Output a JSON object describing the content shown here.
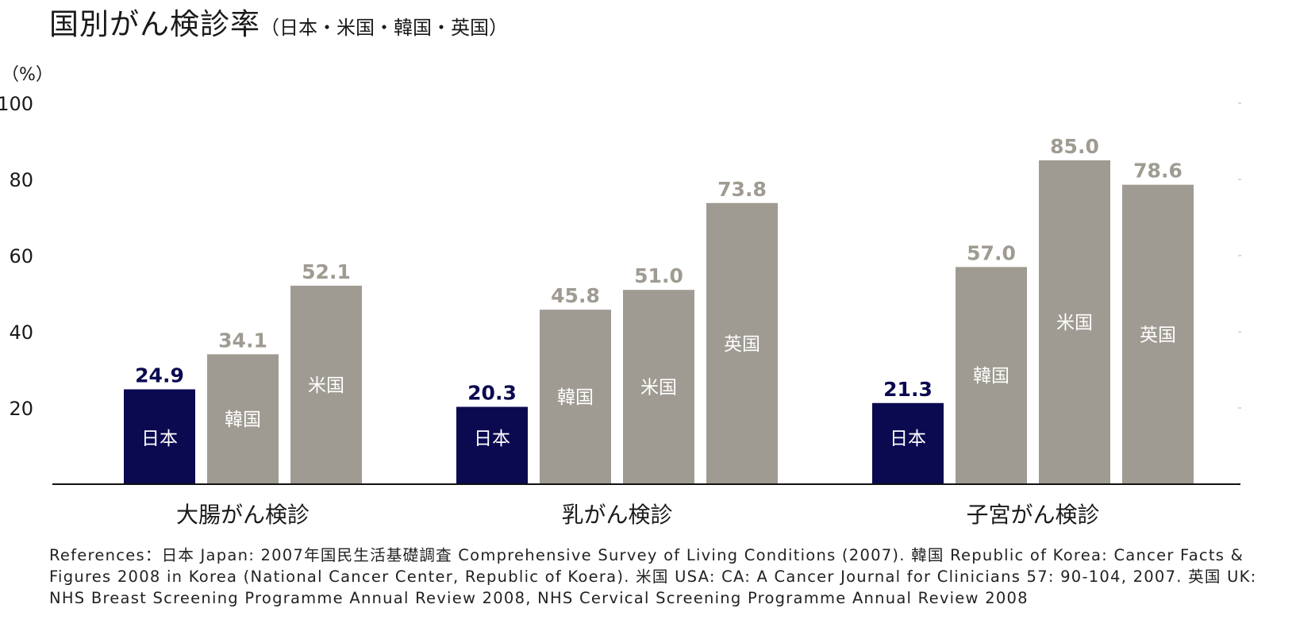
{
  "title": "国別がん検診率",
  "subtitle": "（日本・米国・韓国・英国）",
  "y_unit": "（%）",
  "colors": {
    "japan": "#0b0950",
    "others": "#9f9b92",
    "axis": "#111111",
    "grid": "#cccccc"
  },
  "chart_data": {
    "type": "bar",
    "ylabel": "（%）",
    "ylim": [
      0,
      100
    ],
    "yticks": [
      20,
      40,
      60,
      80,
      100
    ],
    "groups": [
      {
        "label": "大腸がん検診",
        "bars": [
          {
            "name": "日本",
            "value": 24.9,
            "value_label": "24.9"
          },
          {
            "name": "韓国",
            "value": 34.1,
            "value_label": "34.1"
          },
          {
            "name": "米国",
            "value": 52.1,
            "value_label": "52.1"
          }
        ]
      },
      {
        "label": "乳がん検診",
        "bars": [
          {
            "name": "日本",
            "value": 20.3,
            "value_label": "20.3"
          },
          {
            "name": "韓国",
            "value": 45.8,
            "value_label": "45.8"
          },
          {
            "name": "米国",
            "value": 51.0,
            "value_label": "51.0"
          },
          {
            "name": "英国",
            "value": 73.8,
            "value_label": "73.8"
          }
        ]
      },
      {
        "label": "子宮がん検診",
        "bars": [
          {
            "name": "日本",
            "value": 21.3,
            "value_label": "21.3"
          },
          {
            "name": "韓国",
            "value": 57.0,
            "value_label": "57.0"
          },
          {
            "name": "米国",
            "value": 85.0,
            "value_label": "85.0"
          },
          {
            "name": "英国",
            "value": 78.6,
            "value_label": "78.6"
          }
        ]
      }
    ]
  },
  "references": "References：日本 Japan: 2007年国民生活基礎調査 Comprehensive Survey of Living Conditions (2007). 韓国 Republic of Korea: Cancer Facts &\nFigures 2008 in Korea (National Cancer Center, Republic of Koera). 米国 USA: CA: A Cancer Journal for Clinicians 57: 90-104, 2007. 英国 UK:\nNHS Breast Screening Programme Annual Review 2008, NHS Cervical Screening Programme Annual Review 2008"
}
